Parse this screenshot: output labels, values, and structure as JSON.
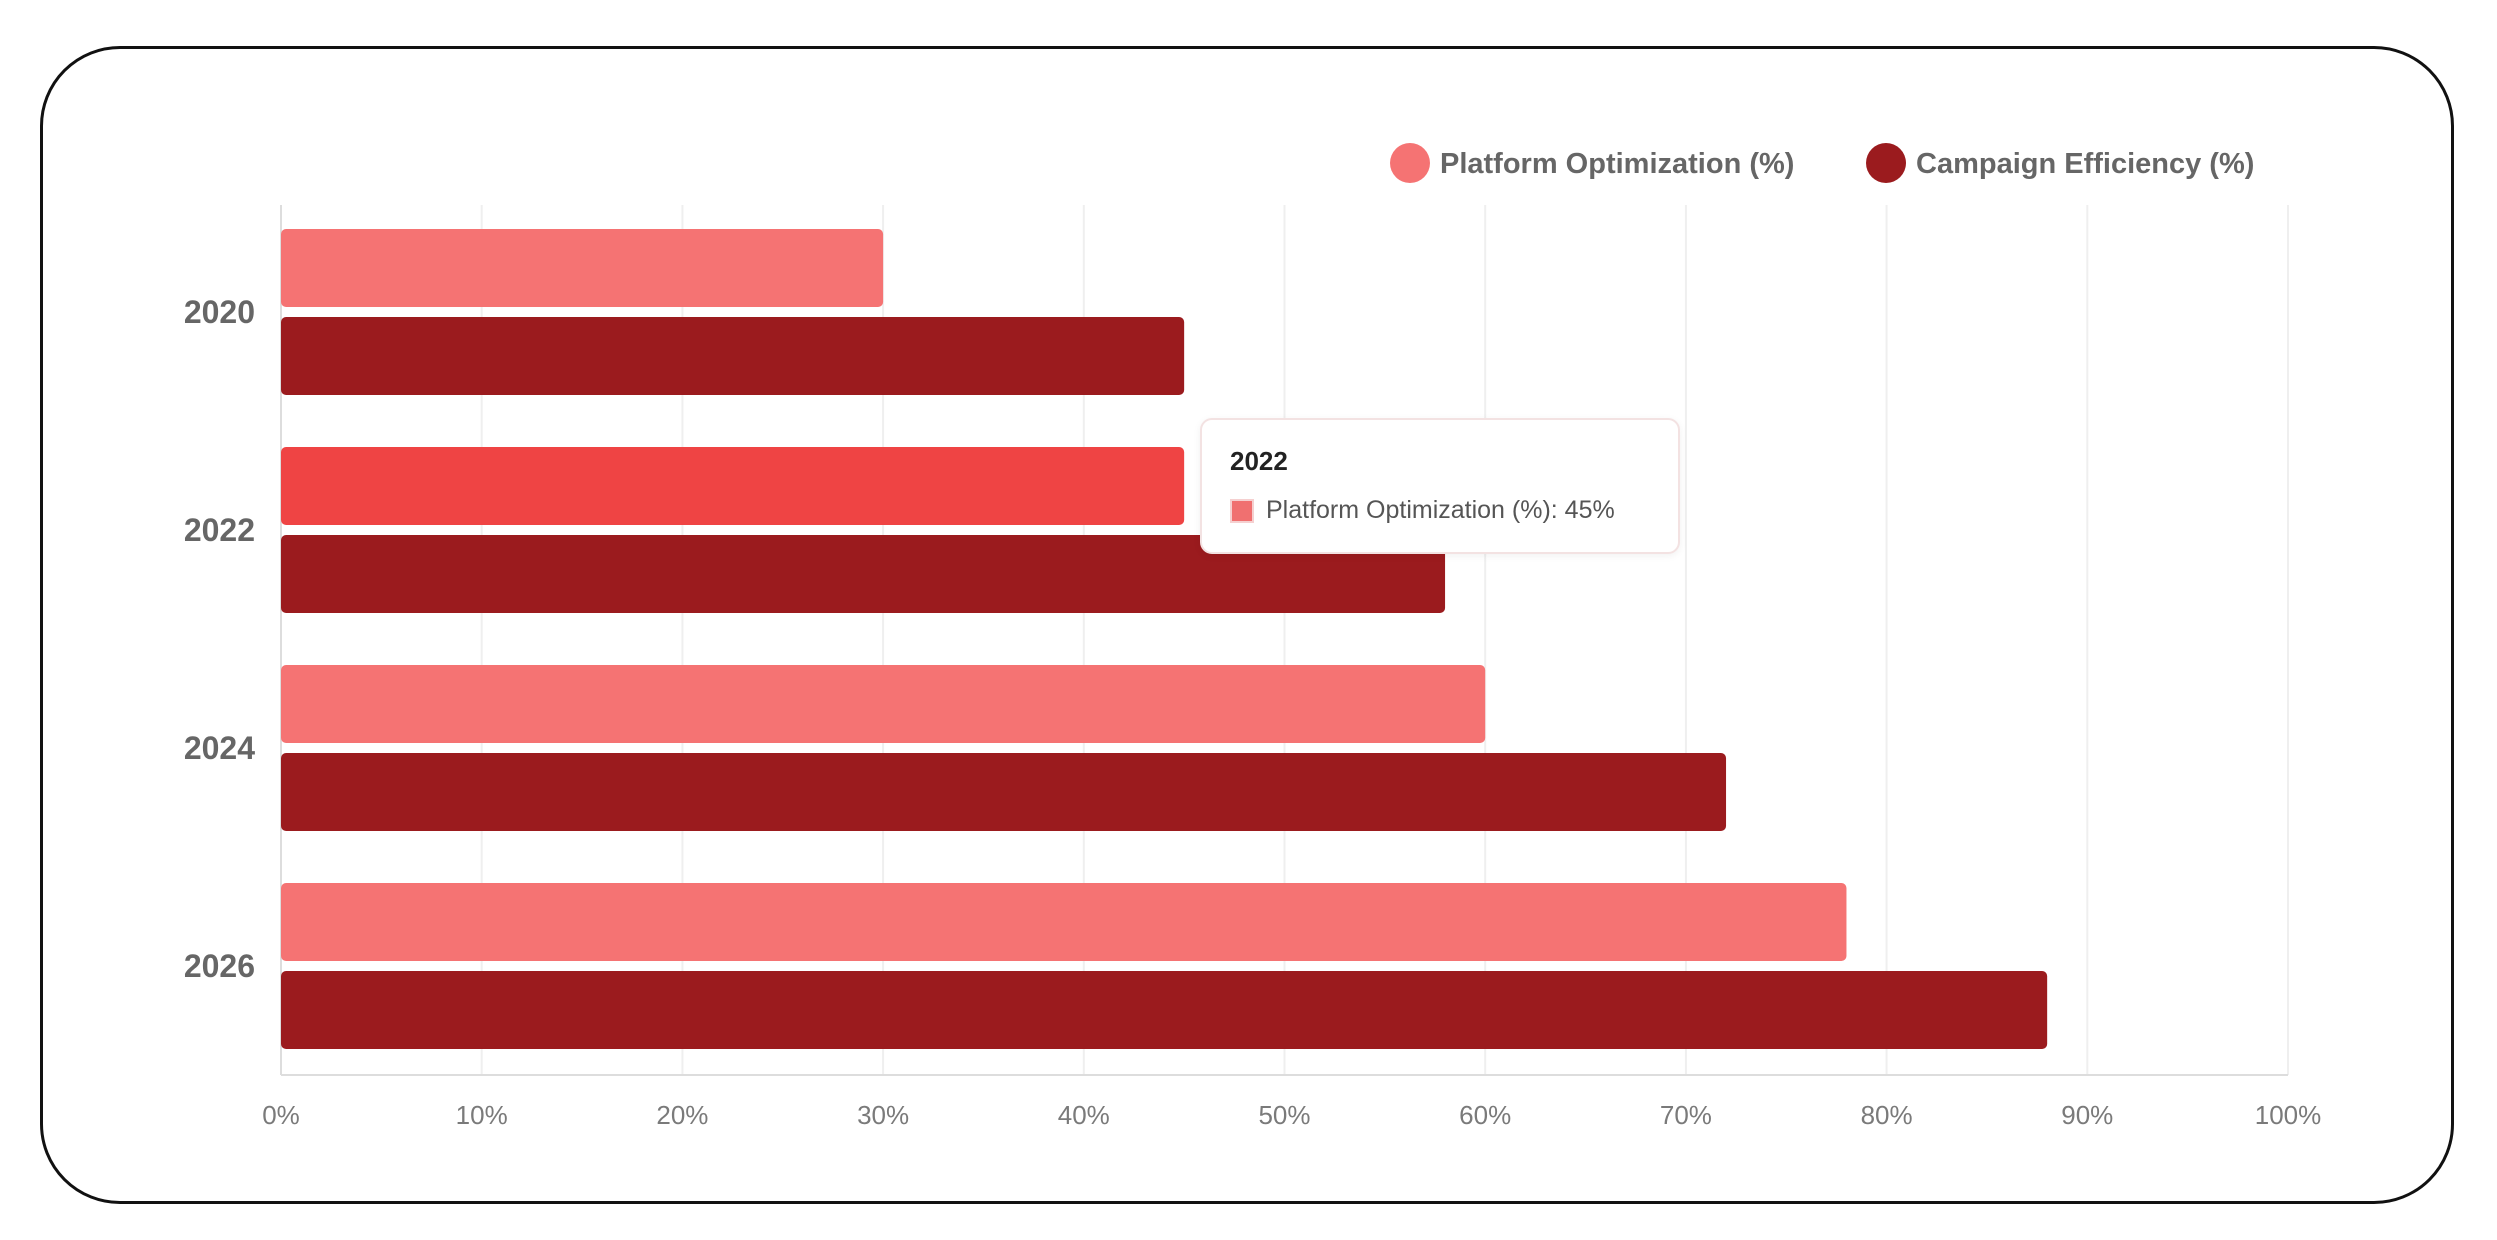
{
  "chart_data": {
    "type": "bar",
    "orientation": "horizontal",
    "categories": [
      "2020",
      "2022",
      "2024",
      "2026"
    ],
    "series": [
      {
        "name": "Platform Optimization (%)",
        "values": [
          30,
          45,
          60,
          78
        ],
        "color": "#f57373"
      },
      {
        "name": "Campaign Efficiency (%)",
        "values": [
          45,
          58,
          72,
          88
        ],
        "color": "#9b1b1e"
      }
    ],
    "xlim": [
      0,
      100
    ],
    "xticks": [
      "0%",
      "10%",
      "20%",
      "30%",
      "40%",
      "50%",
      "60%",
      "70%",
      "80%",
      "90%",
      "100%"
    ],
    "legend_position": "top-right",
    "grid": true,
    "highlight_color": "#ef4444"
  },
  "tooltip": {
    "title": "2022",
    "label": "Platform Optimization (%): 45%"
  }
}
